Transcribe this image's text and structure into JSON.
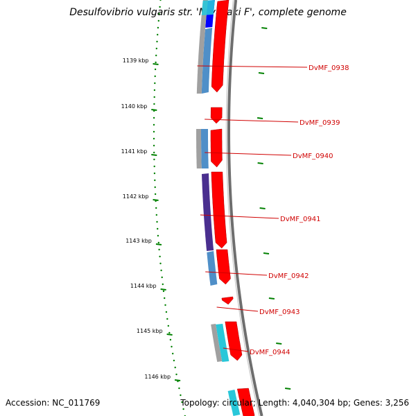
{
  "title": "Desulfovibrio vulgaris str. 'Miyazaki F', complete genome",
  "footer": {
    "accession": "Accession: NC_011769",
    "summary": "Topology: circular; Length: 4,040,304 bp; Genes: 3,256"
  },
  "colors": {
    "backbone": "#6e6e6e",
    "tick": "#008000",
    "gene_forward": "#ff0000",
    "label": "#d00000",
    "track_light_blue": "#4f8fc8",
    "track_gray": "#a0a0a0",
    "track_purple": "#4a2f8f",
    "track_cyan": "#29c7d9",
    "track_blue": "#0000ff"
  },
  "scale": {
    "ticks": [
      {
        "label": "1139 kbp"
      },
      {
        "label": "1140 kbp"
      },
      {
        "label": "1141 kbp"
      },
      {
        "label": "1142 kbp"
      },
      {
        "label": "1143 kbp"
      },
      {
        "label": "1144 kbp"
      },
      {
        "label": "1145 kbp"
      },
      {
        "label": "1146 kbp"
      }
    ]
  },
  "genes": [
    {
      "label": "DvMF_0938"
    },
    {
      "label": "DvMF_0939"
    },
    {
      "label": "DvMF_0940"
    },
    {
      "label": "DvMF_0941"
    },
    {
      "label": "DvMF_0942"
    },
    {
      "label": "DvMF_0943"
    },
    {
      "label": "DvMF_0944"
    }
  ],
  "icons": {
    "backbone": "genome-backbone-arc",
    "gene": "gene-arrow-icon"
  }
}
